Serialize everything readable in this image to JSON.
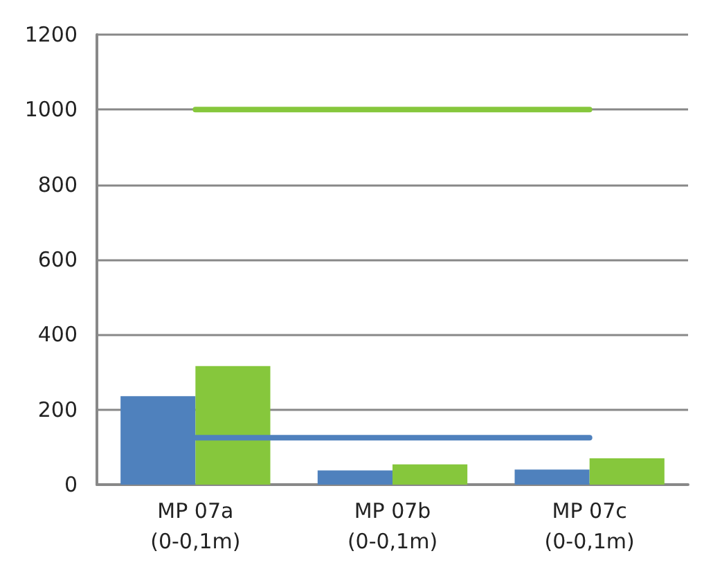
{
  "chart_data": {
    "type": "bar",
    "categories": [
      "MP 07a\n(0-0,1m)",
      "MP 07b\n(0-0,1m)",
      "MP 07c\n(0-0,1m)"
    ],
    "series": [
      {
        "color": "#4f81bd",
        "values": [
          236,
          38,
          40
        ]
      },
      {
        "color": "#86c73c",
        "values": [
          316,
          54,
          70
        ]
      },
      {
        "type": "line",
        "color": "#86c73c",
        "values": [
          1000,
          1000,
          1000
        ]
      },
      {
        "type": "line",
        "color": "#4f81bd",
        "values": [
          125,
          125,
          125
        ]
      }
    ],
    "ylim": [
      0,
      1200
    ],
    "yticks": [
      0,
      200,
      400,
      600,
      800,
      1000,
      1200
    ],
    "grid": "y",
    "marker": "none"
  }
}
